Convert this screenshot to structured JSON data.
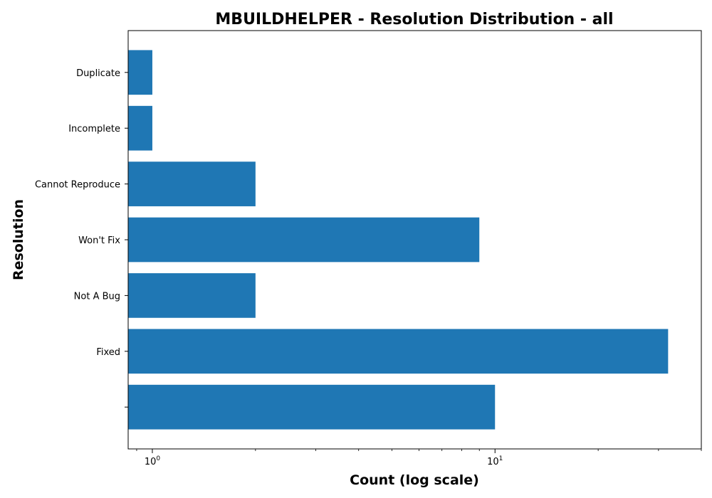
{
  "chart_data": {
    "type": "bar",
    "orientation": "horizontal",
    "title": "MBUILDHELPER - Resolution Distribution - all",
    "xlabel": "Count (log scale)",
    "ylabel": "Resolution",
    "x_scale": "log",
    "xlim": [
      0.85,
      40
    ],
    "x_major_ticks": [
      {
        "value": 1,
        "base": "10",
        "exponent": "0"
      },
      {
        "value": 10,
        "base": "10",
        "exponent": "1"
      }
    ],
    "categories": [
      "",
      "Fixed",
      "Not A Bug",
      "Won't Fix",
      "Cannot Reproduce",
      "Incomplete",
      "Duplicate"
    ],
    "values": [
      10,
      32,
      2,
      9,
      2,
      1,
      1
    ],
    "bar_color": "#1f77b4",
    "grid": false,
    "legend": "none"
  }
}
